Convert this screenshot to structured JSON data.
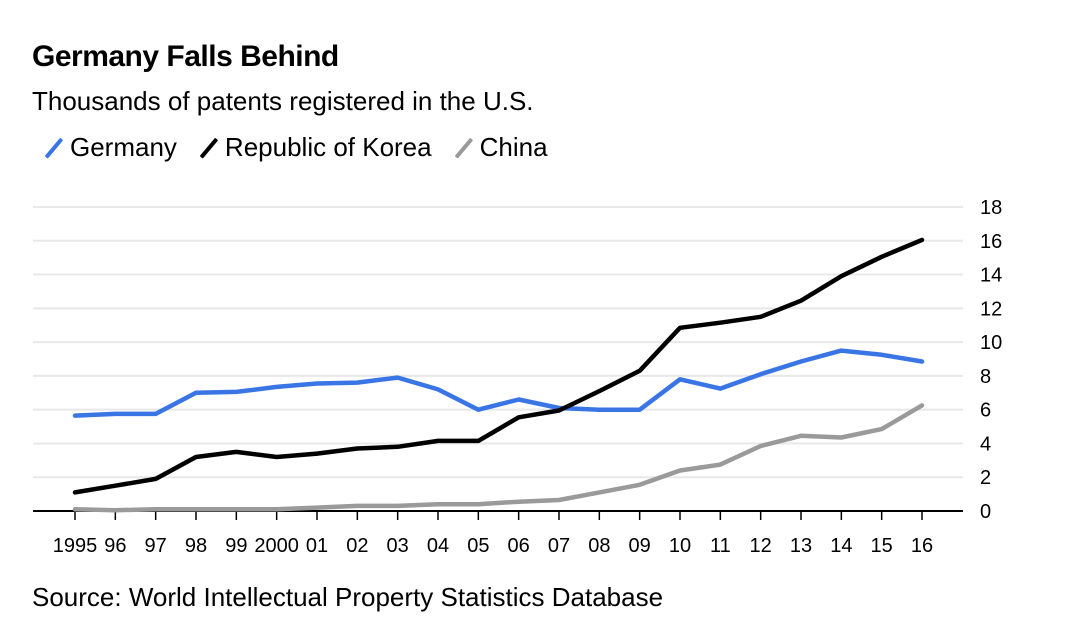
{
  "chart_data": {
    "type": "line",
    "title": "Germany Falls Behind",
    "subtitle": "Thousands of patents registered in the U.S.",
    "source": "Source: World Intellectual Property Statistics Database",
    "xlabel": "",
    "ylabel": "",
    "x": [
      1995,
      1996,
      1997,
      1998,
      1999,
      2000,
      2001,
      2002,
      2003,
      2004,
      2005,
      2006,
      2007,
      2008,
      2009,
      2010,
      2011,
      2012,
      2013,
      2014,
      2015,
      2016
    ],
    "xtick_labels": [
      "1995",
      "96",
      "97",
      "98",
      "99",
      "2000",
      "01",
      "02",
      "03",
      "04",
      "05",
      "06",
      "07",
      "08",
      "09",
      "10",
      "11",
      "12",
      "13",
      "14",
      "15",
      "16"
    ],
    "ylim": [
      0,
      18
    ],
    "yticks": [
      0,
      2,
      4,
      6,
      8,
      10,
      12,
      14,
      16,
      18
    ],
    "y_axis_side": "right",
    "grid": true,
    "legend_position": "top-left",
    "series": [
      {
        "name": "Germany",
        "color": "#3a75e6",
        "values": [
          5.65,
          5.75,
          5.75,
          7.0,
          7.05,
          7.35,
          7.55,
          7.6,
          7.9,
          7.2,
          6.0,
          6.6,
          6.1,
          6.0,
          6.0,
          7.8,
          7.25,
          8.1,
          8.85,
          9.5,
          9.25,
          8.85
        ]
      },
      {
        "name": "Republic of Korea",
        "color": "#000000",
        "values": [
          1.1,
          1.5,
          1.9,
          3.2,
          3.5,
          3.2,
          3.4,
          3.7,
          3.8,
          4.15,
          4.15,
          5.55,
          5.95,
          7.1,
          8.3,
          10.85,
          11.15,
          11.5,
          12.45,
          13.9,
          15.05,
          16.05
        ]
      },
      {
        "name": "China",
        "color": "#9a9a9a",
        "values": [
          0.1,
          0.05,
          0.1,
          0.1,
          0.1,
          0.1,
          0.2,
          0.3,
          0.3,
          0.4,
          0.4,
          0.55,
          0.65,
          1.1,
          1.55,
          2.4,
          2.75,
          3.85,
          4.45,
          4.35,
          4.85,
          6.25
        ]
      }
    ]
  }
}
